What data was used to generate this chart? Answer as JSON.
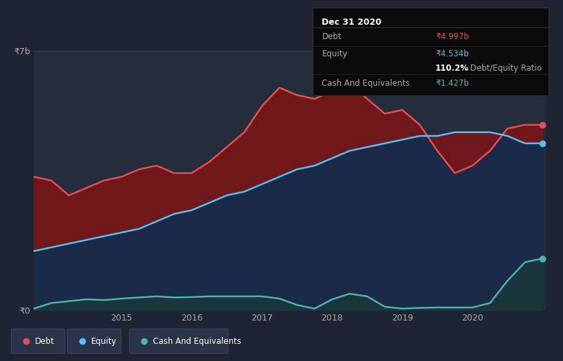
{
  "bg_color": "#1e2433",
  "plot_bg_color": "#252d3d",
  "tooltip": {
    "title": "Dec 31 2020",
    "debt_label": "Debt",
    "debt_value": "₹4.997b",
    "equity_label": "Equity",
    "equity_value": "₹4.534b",
    "ratio_bold": "110.2%",
    "ratio_rest": " Debt/Equity Ratio",
    "cash_label": "Cash And Equivalents",
    "cash_value": "₹1.427b"
  },
  "ylabel_7b": "₹7b",
  "ylabel_0": "₹0",
  "x_labels": [
    "2015",
    "2016",
    "2017",
    "2018",
    "2019",
    "2020"
  ],
  "legend": [
    {
      "label": "Debt",
      "color": "#e05252"
    },
    {
      "label": "Equity",
      "color": "#4fc3f7"
    },
    {
      "label": "Cash And Equivalents",
      "color": "#4db6ac"
    }
  ],
  "debt_color": "#e05252",
  "equity_color": "#4fc3f7",
  "cash_color": "#4db6ac",
  "debt_fill_color": "#7b1515",
  "equity_fill_color": "#1a2a4a",
  "cash_fill_color": "#1a3a38",
  "x": [
    2013.75,
    2014.0,
    2014.25,
    2014.5,
    2014.75,
    2015.0,
    2015.25,
    2015.5,
    2015.75,
    2016.0,
    2016.25,
    2016.5,
    2016.75,
    2017.0,
    2017.25,
    2017.5,
    2017.75,
    2018.0,
    2018.25,
    2018.5,
    2018.75,
    2019.0,
    2019.25,
    2019.5,
    2019.75,
    2020.0,
    2020.25,
    2020.5,
    2020.75,
    2021.0
  ],
  "debt": [
    3.6,
    3.5,
    3.1,
    3.3,
    3.5,
    3.6,
    3.8,
    3.9,
    3.7,
    3.7,
    4.0,
    4.4,
    4.8,
    5.5,
    6.0,
    5.8,
    5.7,
    5.9,
    6.1,
    5.7,
    5.3,
    5.4,
    5.0,
    4.3,
    3.7,
    3.9,
    4.3,
    4.9,
    5.0,
    5.0
  ],
  "equity": [
    1.6,
    1.7,
    1.8,
    1.9,
    2.0,
    2.1,
    2.2,
    2.4,
    2.6,
    2.7,
    2.9,
    3.1,
    3.2,
    3.4,
    3.6,
    3.8,
    3.9,
    4.1,
    4.3,
    4.4,
    4.5,
    4.6,
    4.7,
    4.7,
    4.8,
    4.8,
    4.8,
    4.7,
    4.5,
    4.5
  ],
  "cash": [
    0.05,
    0.2,
    0.25,
    0.3,
    0.28,
    0.32,
    0.35,
    0.38,
    0.35,
    0.36,
    0.38,
    0.38,
    0.38,
    0.38,
    0.32,
    0.15,
    0.05,
    0.3,
    0.45,
    0.38,
    0.1,
    0.05,
    0.07,
    0.08,
    0.08,
    0.08,
    0.2,
    0.8,
    1.3,
    1.4
  ],
  "xlim": [
    2013.75,
    2021.05
  ],
  "ylim": [
    0,
    7.0
  ]
}
